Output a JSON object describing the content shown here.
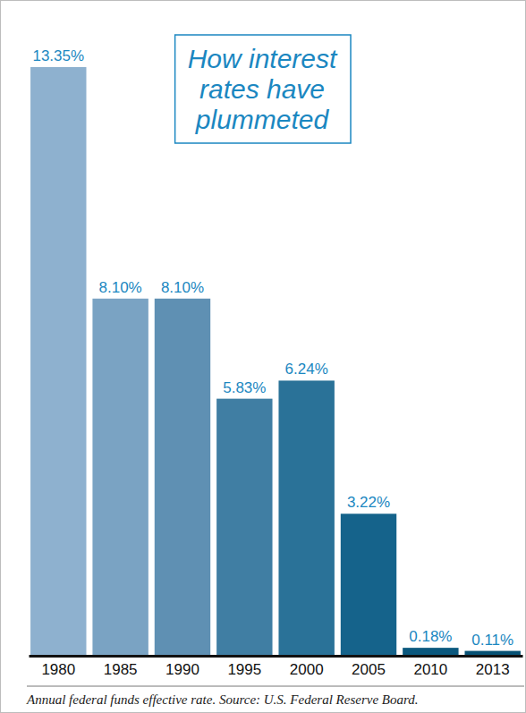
{
  "chart_data": {
    "type": "bar",
    "title": "How interest rates have plummeted",
    "caption": "Annual federal funds effective rate. Source: U.S. Federal Reserve Board.",
    "categories": [
      "1980",
      "1985",
      "1990",
      "1995",
      "2000",
      "2005",
      "2010",
      "2013"
    ],
    "values": [
      13.35,
      8.1,
      8.1,
      5.83,
      6.24,
      3.22,
      0.18,
      0.11
    ],
    "value_labels": [
      "13.35%",
      "8.10%",
      "8.10%",
      "5.83%",
      "6.24%",
      "3.22%",
      "0.18%",
      "0.11%"
    ],
    "colors": [
      "#8eb1cf",
      "#7aa3c3",
      "#5f90b3",
      "#407ea3",
      "#2a7298",
      "#15638b",
      "#0b587e",
      "#075275"
    ],
    "ylim": [
      0,
      13.35
    ],
    "grid": false,
    "data_labels": true,
    "tick_labels": "x"
  }
}
